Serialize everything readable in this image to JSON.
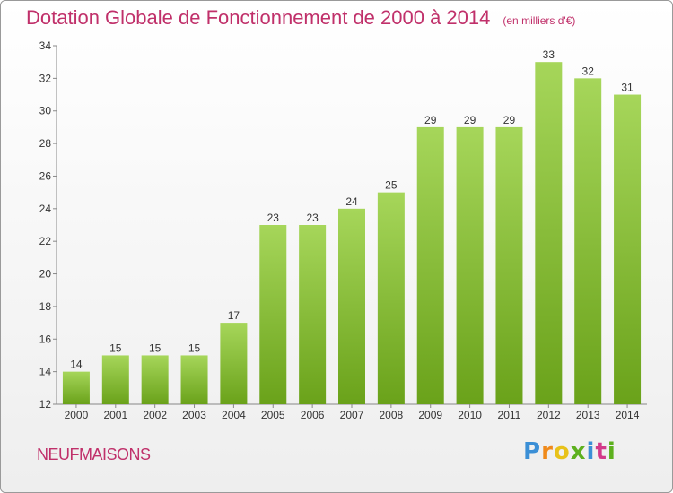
{
  "header": {
    "title": "Dotation Globale de Fonctionnement de 2000 à 2014",
    "subtitle": "(en milliers d'€)"
  },
  "footer": {
    "town": "NEUFMAISONS",
    "logo_text": "Proxiti"
  },
  "colors": {
    "title": "#c0306a",
    "bar_top": "#a6d65a",
    "bar_bottom": "#6aa21a",
    "logo_letters": [
      "#3b8fd6",
      "#f08a1a",
      "#e8c21a",
      "#5db01e",
      "#3b8fd6",
      "#d23a8a",
      "#5db01e"
    ]
  },
  "chart_data": {
    "type": "bar",
    "categories": [
      "2000",
      "2001",
      "2002",
      "2003",
      "2004",
      "2005",
      "2006",
      "2007",
      "2008",
      "2009",
      "2010",
      "2011",
      "2012",
      "2013",
      "2014"
    ],
    "values": [
      14,
      15,
      15,
      15,
      17,
      23,
      23,
      24,
      25,
      29,
      29,
      29,
      33,
      32,
      31
    ],
    "ylim": [
      12,
      34
    ],
    "yticks": [
      12,
      14,
      16,
      18,
      20,
      22,
      24,
      26,
      28,
      30,
      32,
      34
    ],
    "grid": false,
    "legend": "none"
  }
}
